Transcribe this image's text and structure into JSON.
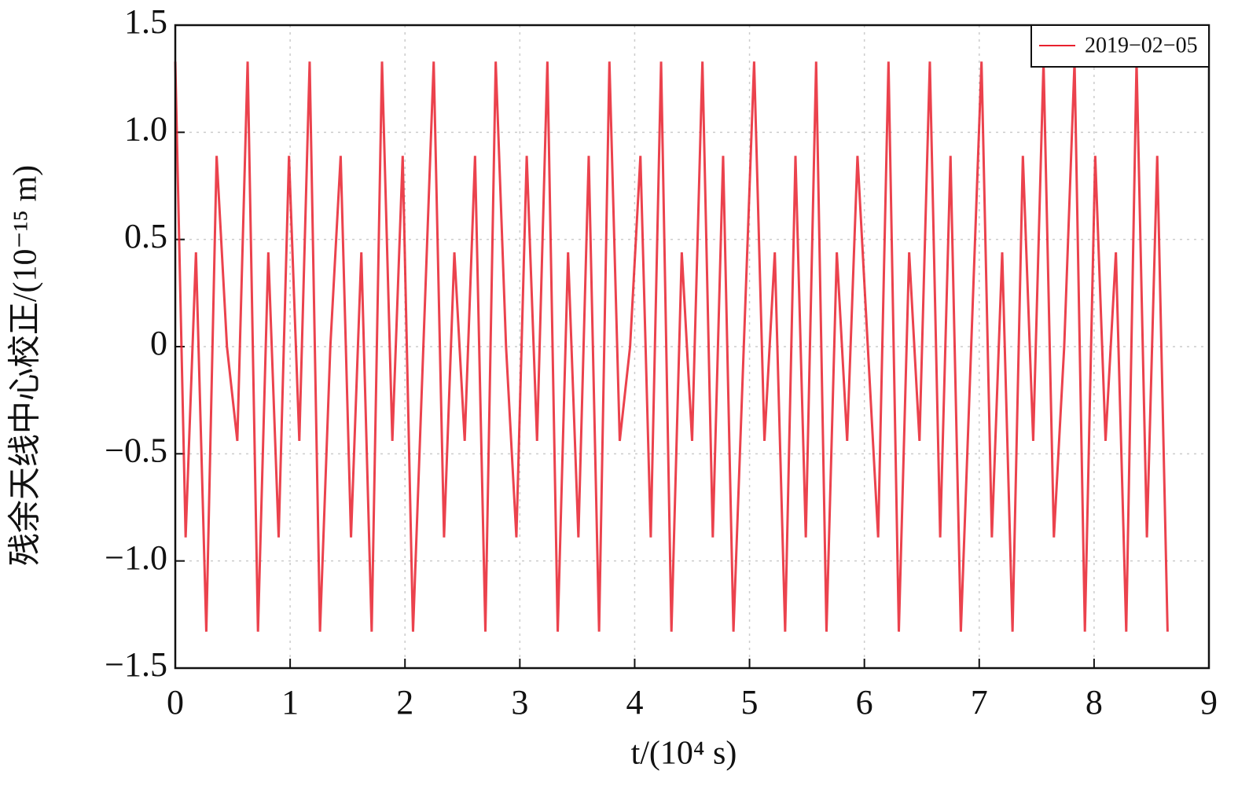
{
  "chart_data": {
    "type": "line",
    "x_label": "t/(10⁴ s)",
    "y_label": "残余天线中心校正/(10⁻¹⁵ m)",
    "x": [
      0,
      0.09,
      0.18,
      0.27,
      0.36,
      0.45,
      0.54,
      0.63,
      0.72,
      0.81,
      0.9,
      0.99,
      1.08,
      1.17,
      1.26,
      1.35,
      1.44,
      1.53,
      1.62,
      1.71,
      1.8,
      1.89,
      1.98,
      2.07,
      2.16,
      2.25,
      2.34,
      2.43,
      2.52,
      2.61,
      2.7,
      2.79,
      2.88,
      2.97,
      3.06,
      3.15,
      3.24,
      3.33,
      3.42,
      3.51,
      3.6,
      3.69,
      3.78,
      3.87,
      3.96,
      4.05,
      4.14,
      4.23,
      4.32,
      4.41,
      4.5,
      4.59,
      4.68,
      4.77,
      4.86,
      4.95,
      5.04,
      5.13,
      5.22,
      5.31,
      5.4,
      5.49,
      5.58,
      5.67,
      5.76,
      5.85,
      5.94,
      6.03,
      6.12,
      6.21,
      6.3,
      6.39,
      6.48,
      6.57,
      6.66,
      6.75,
      6.84,
      6.93,
      7.02,
      7.11,
      7.2,
      7.29,
      7.38,
      7.47,
      7.56,
      7.65,
      7.74,
      7.83,
      7.92,
      8.01,
      8.1,
      8.19,
      8.28,
      8.37,
      8.46,
      8.55,
      8.64
    ],
    "series": [
      {
        "name": "2019−02−05",
        "color": "#e8212e",
        "values": [
          1.33,
          -0.89,
          0.44,
          -1.33,
          0.89,
          0,
          -0.44,
          1.33,
          -1.33,
          0.44,
          -0.89,
          0.89,
          -0.44,
          1.33,
          -1.33,
          0,
          0.89,
          -0.89,
          0.44,
          -1.33,
          1.33,
          -0.44,
          0.89,
          -1.33,
          0,
          1.33,
          -0.89,
          0.44,
          -0.44,
          0.89,
          -1.33,
          1.33,
          0,
          -0.89,
          0.89,
          -0.44,
          1.33,
          -1.33,
          0.44,
          -0.89,
          0.89,
          -1.33,
          1.33,
          -0.44,
          0,
          0.89,
          -0.89,
          1.33,
          -1.33,
          0.44,
          -0.44,
          1.33,
          -0.89,
          0.89,
          -1.33,
          0,
          1.33,
          -0.44,
          0.44,
          -1.33,
          0.89,
          -0.89,
          1.33,
          -1.33,
          0.44,
          -0.44,
          0.89,
          0,
          -0.89,
          1.33,
          -1.33,
          0.44,
          -0.44,
          1.33,
          -0.89,
          0.89,
          -1.33,
          0,
          1.33,
          -0.89,
          0.44,
          -1.33,
          0.89,
          -0.44,
          1.33,
          -0.89,
          0,
          1.33,
          -1.33,
          0.89,
          -0.44,
          0.44,
          -1.33,
          1.33,
          -0.89,
          0.89,
          -1.33
        ]
      }
    ],
    "xlim": [
      0,
      9
    ],
    "xticks": [
      0,
      1,
      2,
      3,
      4,
      5,
      6,
      7,
      8,
      9
    ],
    "ylim": [
      -1.5,
      1.5
    ],
    "yticks": [
      {
        "value": -1.5,
        "label": "−1.5"
      },
      {
        "value": -1,
        "label": "−1.0"
      },
      {
        "value": -0.5,
        "label": "−0.5"
      },
      0,
      0.5,
      {
        "value": 1,
        "label": "1.0"
      },
      1.5
    ],
    "grid": true,
    "legend": "upper right"
  }
}
